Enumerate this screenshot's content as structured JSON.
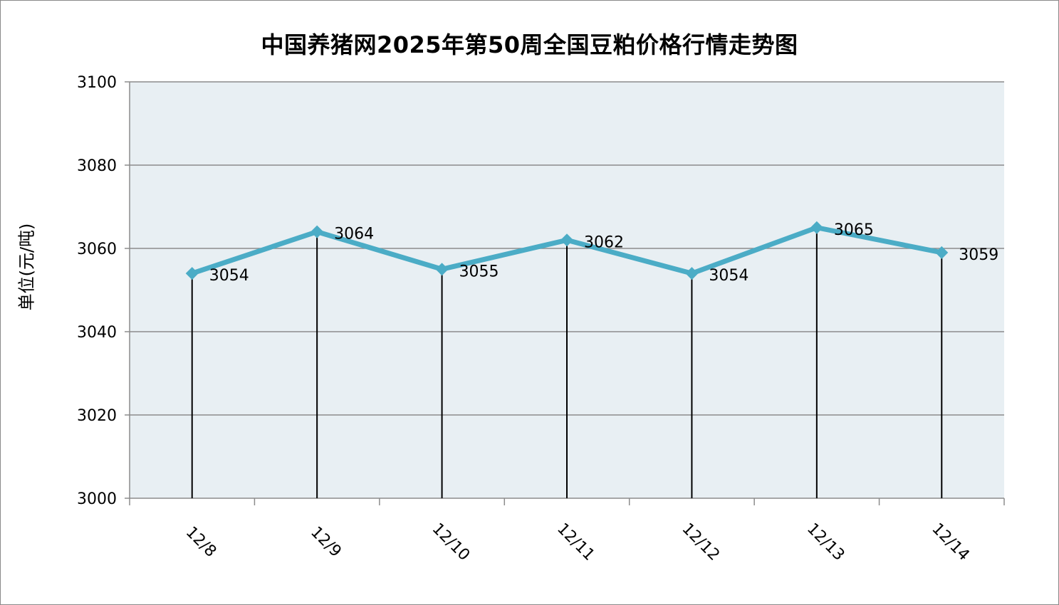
{
  "chart_data": {
    "type": "line",
    "title": "中国养猪网2025年第50周全国豆粕价格行情走势图",
    "ylabel": "单位(元/吨)",
    "xlabel": "",
    "categories": [
      "12/8",
      "12/9",
      "12/10",
      "12/11",
      "12/12",
      "12/13",
      "12/14"
    ],
    "values": [
      3054,
      3064,
      3055,
      3062,
      3054,
      3065,
      3059
    ],
    "data_labels": [
      "3054",
      "3064",
      "3055",
      "3062",
      "3054",
      "3065",
      "3059"
    ],
    "ylim": [
      3000,
      3100
    ],
    "yticks": [
      3000,
      3020,
      3040,
      3060,
      3080,
      3100
    ],
    "grid": true,
    "drop_lines": true,
    "marker": "diamond",
    "colors": {
      "line": "#4bacc6",
      "plot_background": "#e8eff3",
      "grid": "#8c8c8c",
      "drop_line": "#000000"
    }
  }
}
